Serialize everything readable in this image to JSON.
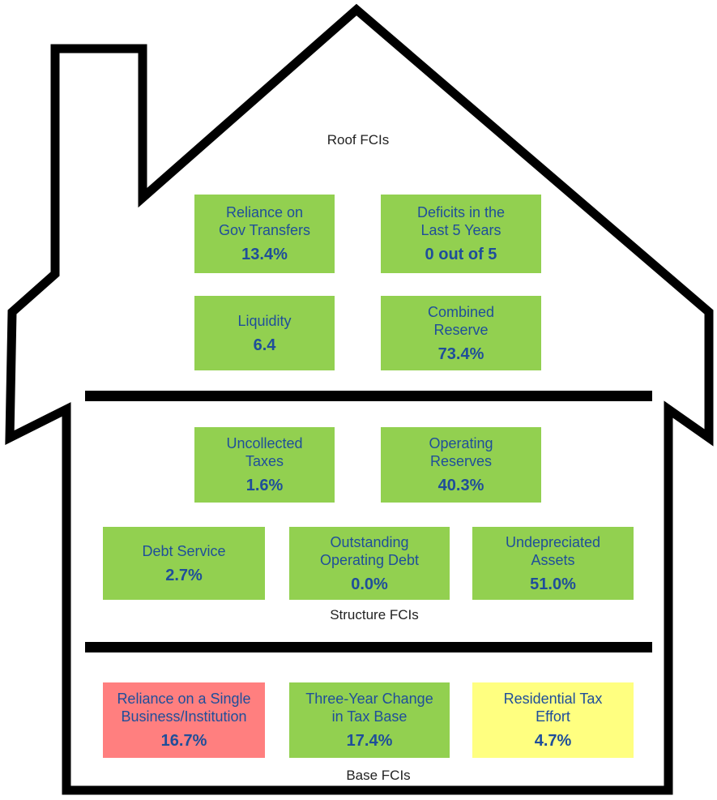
{
  "roof": {
    "title": "Roof FCIs",
    "tiles": [
      {
        "label": [
          "Reliance on",
          "Gov Transfers"
        ],
        "value": "13.4%",
        "color": "#92d050"
      },
      {
        "label": [
          "Deficits in the",
          "Last 5 Years"
        ],
        "value": "0 out of 5",
        "color": "#92d050"
      },
      {
        "label": [
          "Liquidity"
        ],
        "value": "6.4",
        "color": "#92d050"
      },
      {
        "label": [
          "Combined",
          "Reserve"
        ],
        "value": "73.4%",
        "color": "#92d050"
      }
    ]
  },
  "structure": {
    "title": "Structure FCIs",
    "tiles": [
      {
        "label": [
          "Uncollected",
          "Taxes"
        ],
        "value": "1.6%",
        "color": "#92d050"
      },
      {
        "label": [
          "Operating",
          "Reserves"
        ],
        "value": "40.3%",
        "color": "#92d050"
      },
      {
        "label": [
          "Debt Service"
        ],
        "value": "2.7%",
        "color": "#92d050"
      },
      {
        "label": [
          "Outstanding",
          "Operating Debt"
        ],
        "value": "0.0%",
        "color": "#92d050"
      },
      {
        "label": [
          "Undepreciated",
          "Assets"
        ],
        "value": "51.0%",
        "color": "#92d050"
      }
    ]
  },
  "base": {
    "title": "Base FCIs",
    "tiles": [
      {
        "label": [
          "Reliance on a Single",
          "Business/Institution"
        ],
        "value": "16.7%",
        "color": "#ff7f7f"
      },
      {
        "label": [
          "Three-Year Change",
          "in Tax Base"
        ],
        "value": "17.4%",
        "color": "#92d050"
      },
      {
        "label": [
          "Residential Tax",
          "Effort"
        ],
        "value": "4.7%",
        "color": "#ffff80"
      }
    ]
  }
}
